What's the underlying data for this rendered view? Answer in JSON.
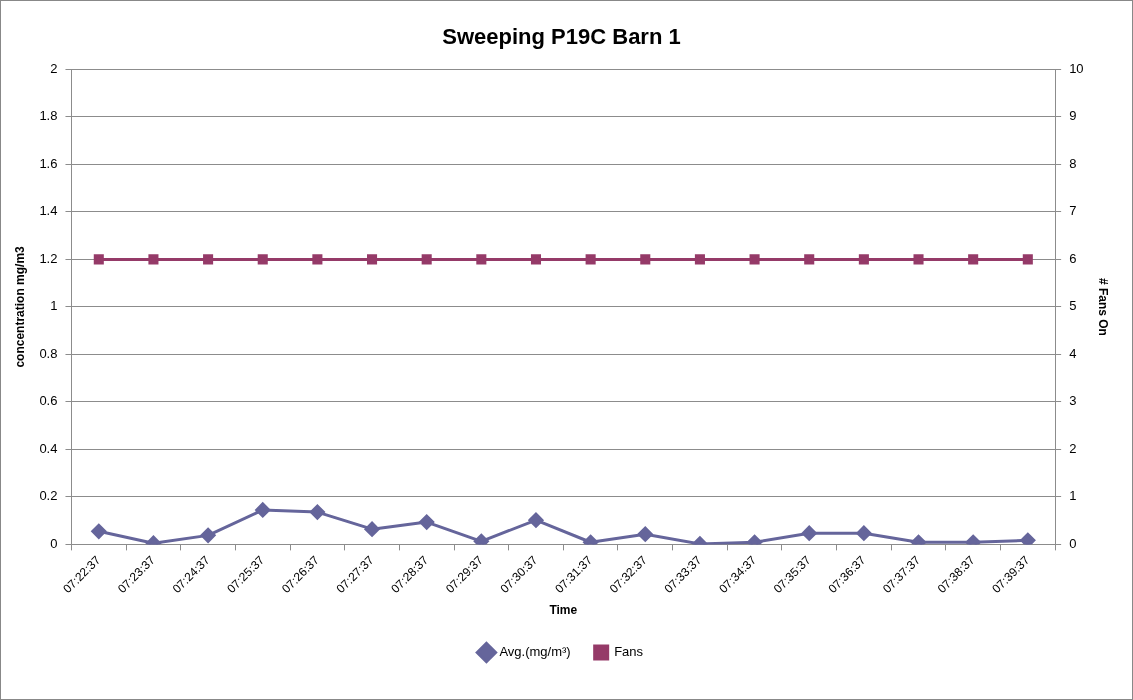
{
  "chart_data": {
    "type": "line",
    "title": "Sweeping P19C Barn 1",
    "xlabel": "Time",
    "ylabel": "concentration mg/m3",
    "y2label": "# Fans On",
    "categories": [
      "07:22:37",
      "07:23:37",
      "07:24:37",
      "07:25:37",
      "07:26:37",
      "07:27:37",
      "07:28:37",
      "07:29:37",
      "07:30:37",
      "07:31:37",
      "07:32:37",
      "07:33:37",
      "07:34:37",
      "07:35:37",
      "07:36:37",
      "07:37:37",
      "07:38:37",
      "07:39:37"
    ],
    "series": [
      {
        "name": "Avg.(mg/m³)",
        "color": "#65659b",
        "marker": "diamond",
        "values": [
          0.055,
          0.005,
          0.038,
          0.145,
          0.136,
          0.064,
          0.094,
          0.013,
          0.102,
          0.009,
          0.043,
          0.002,
          0.009,
          0.047,
          0.047,
          0.009,
          0.009,
          0.017
        ]
      },
      {
        "name": "Fans",
        "color": "#953a68",
        "marker": "square",
        "axis": "y2",
        "values": [
          6,
          6,
          6,
          6,
          6,
          6,
          6,
          6,
          6,
          6,
          6,
          6,
          6,
          6,
          6,
          6,
          6,
          6
        ]
      }
    ],
    "ylim": [
      0,
      2
    ],
    "yticks": [
      0,
      0.2,
      0.4,
      0.6,
      0.8,
      1,
      1.2,
      1.4,
      1.6,
      1.8,
      2
    ],
    "y2lim": [
      0,
      10
    ],
    "y2ticks": [
      0,
      1,
      2,
      3,
      4,
      5,
      6,
      7,
      8,
      9,
      10
    ],
    "grid": "y",
    "legend": "bottom",
    "line_style": "solid"
  }
}
